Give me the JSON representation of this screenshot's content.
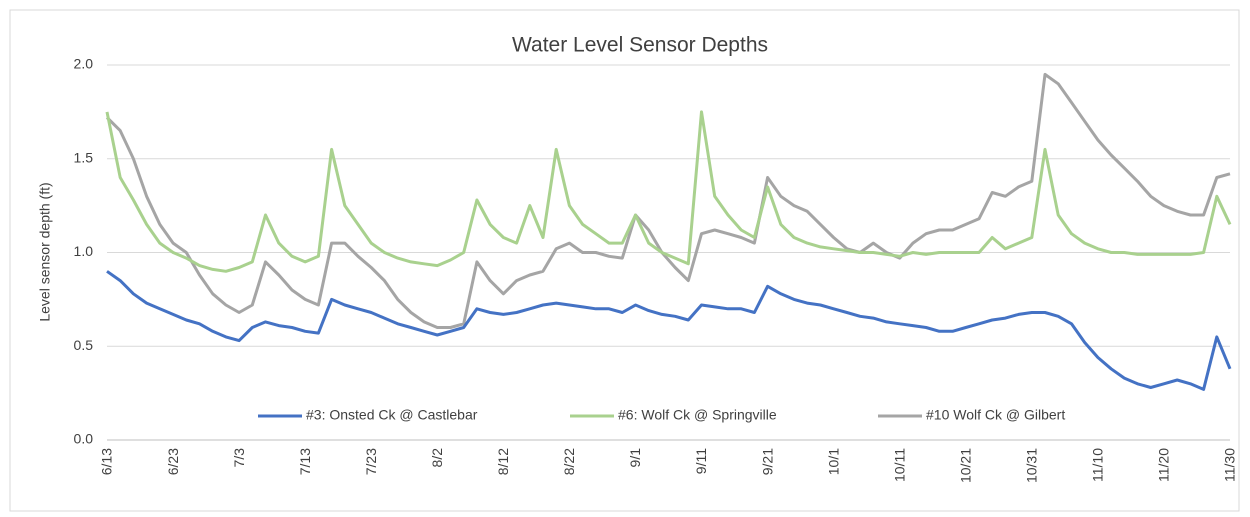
{
  "chart_data": {
    "type": "line",
    "title": "Water Level Sensor Depths",
    "y_label": "Level sensor depth (ft)",
    "categories": [
      "6/13",
      null,
      null,
      null,
      null,
      "6/23",
      null,
      null,
      null,
      null,
      "7/3",
      null,
      null,
      null,
      null,
      "7/13",
      null,
      null,
      null,
      null,
      "7/23",
      null,
      null,
      null,
      null,
      "8/2",
      null,
      null,
      null,
      null,
      "8/12",
      null,
      null,
      null,
      null,
      "8/22",
      null,
      null,
      null,
      null,
      "9/1",
      null,
      null,
      null,
      null,
      "9/11",
      null,
      null,
      null,
      null,
      "9/21",
      null,
      null,
      null,
      null,
      "10/1",
      null,
      null,
      null,
      null,
      "10/11",
      null,
      null,
      null,
      null,
      "10/21",
      null,
      null,
      null,
      null,
      "10/31",
      null,
      null,
      null,
      null,
      "11/10",
      null,
      null,
      null,
      null,
      "11/20",
      null,
      null,
      null,
      null,
      "11/30"
    ],
    "series": [
      {
        "name": "#3: Onsted Ck @ Castlebar",
        "color": "#4472c4",
        "values": [
          0.9,
          0.85,
          0.78,
          0.73,
          0.7,
          0.67,
          0.64,
          0.62,
          0.58,
          0.55,
          0.53,
          0.6,
          0.63,
          0.61,
          0.6,
          0.58,
          0.57,
          0.75,
          0.72,
          0.7,
          0.68,
          0.65,
          0.62,
          0.6,
          0.58,
          0.56,
          0.58,
          0.6,
          0.7,
          0.68,
          0.67,
          0.68,
          0.7,
          0.72,
          0.73,
          0.72,
          0.71,
          0.7,
          0.7,
          0.68,
          0.72,
          0.69,
          0.67,
          0.66,
          0.64,
          0.72,
          0.71,
          0.7,
          0.7,
          0.68,
          0.82,
          0.78,
          0.75,
          0.73,
          0.72,
          0.7,
          0.68,
          0.66,
          0.65,
          0.63,
          0.62,
          0.61,
          0.6,
          0.58,
          0.58,
          0.6,
          0.62,
          0.64,
          0.65,
          0.67,
          0.68,
          0.68,
          0.66,
          0.62,
          0.52,
          0.44,
          0.38,
          0.33,
          0.3,
          0.28,
          0.3,
          0.32,
          0.3,
          0.27,
          0.55,
          0.38
        ]
      },
      {
        "name": "#6: Wolf Ck @ Springville",
        "color": "#a9d18e",
        "values": [
          1.75,
          1.4,
          1.28,
          1.15,
          1.05,
          1.0,
          0.97,
          0.93,
          0.91,
          0.9,
          0.92,
          0.95,
          1.2,
          1.05,
          0.98,
          0.95,
          0.98,
          1.55,
          1.25,
          1.15,
          1.05,
          1.0,
          0.97,
          0.95,
          0.94,
          0.93,
          0.96,
          1.0,
          1.28,
          1.15,
          1.08,
          1.05,
          1.25,
          1.08,
          1.55,
          1.25,
          1.15,
          1.1,
          1.05,
          1.05,
          1.2,
          1.05,
          1.0,
          0.97,
          0.94,
          1.75,
          1.3,
          1.2,
          1.12,
          1.08,
          1.35,
          1.15,
          1.08,
          1.05,
          1.03,
          1.02,
          1.01,
          1.0,
          1.0,
          0.99,
          0.98,
          1.0,
          0.99,
          1.0,
          1.0,
          1.0,
          1.0,
          1.08,
          1.02,
          1.05,
          1.08,
          1.55,
          1.2,
          1.1,
          1.05,
          1.02,
          1.0,
          1.0,
          0.99,
          0.99,
          0.99,
          0.99,
          0.99,
          1.0,
          1.3,
          1.15
        ]
      },
      {
        "name": "#10 Wolf Ck @ Gilbert",
        "color": "#a5a5a5",
        "values": [
          1.72,
          1.65,
          1.5,
          1.3,
          1.15,
          1.05,
          1.0,
          0.88,
          0.78,
          0.72,
          0.68,
          0.72,
          0.95,
          0.88,
          0.8,
          0.75,
          0.72,
          1.05,
          1.05,
          0.98,
          0.92,
          0.85,
          0.75,
          0.68,
          0.63,
          0.6,
          0.6,
          0.62,
          0.95,
          0.85,
          0.78,
          0.85,
          0.88,
          0.9,
          1.02,
          1.05,
          1.0,
          1.0,
          0.98,
          0.97,
          1.2,
          1.12,
          1.0,
          0.92,
          0.85,
          1.1,
          1.12,
          1.1,
          1.08,
          1.05,
          1.4,
          1.3,
          1.25,
          1.22,
          1.15,
          1.08,
          1.02,
          1.0,
          1.05,
          1.0,
          0.97,
          1.05,
          1.1,
          1.12,
          1.12,
          1.15,
          1.18,
          1.32,
          1.3,
          1.35,
          1.38,
          1.95,
          1.9,
          1.8,
          1.7,
          1.6,
          1.52,
          1.45,
          1.38,
          1.3,
          1.25,
          1.22,
          1.2,
          1.2,
          1.4,
          1.42
        ]
      }
    ],
    "ylim": [
      0,
      2
    ],
    "yticks": [
      {
        "value": 0,
        "label": "0.0"
      },
      {
        "value": 0.5,
        "label": "0.5"
      },
      {
        "value": 1,
        "label": "1.0"
      },
      {
        "value": 1.5,
        "label": "1.5"
      },
      {
        "value": 2,
        "label": "2.0"
      }
    ],
    "grid": true,
    "legend": "bottom"
  }
}
